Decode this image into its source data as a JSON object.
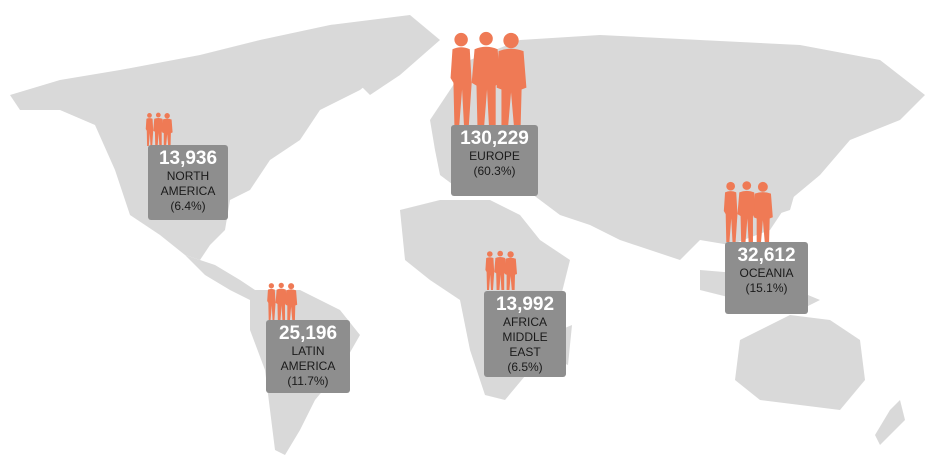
{
  "colors": {
    "map": "#d9d9d9",
    "box": "#8e8e8e",
    "people": "#ef7a55",
    "value": "#ffffff"
  },
  "regions": [
    {
      "id": "north-america",
      "value": "13,936",
      "name": "NORTH AMERICA",
      "share": "(6.4%)"
    },
    {
      "id": "europe",
      "value": "130,229",
      "name": "EUROPE",
      "share": "(60.3%)"
    },
    {
      "id": "oceania",
      "value": "32,612",
      "name": "OCEANIA",
      "share": "(15.1%)"
    },
    {
      "id": "africa-middle-east",
      "value": "13,992",
      "name": "AFRICA MIDDLE EAST",
      "share": "(6.5%)"
    },
    {
      "id": "latin-america",
      "value": "25,196",
      "name": "LATIN AMERICA",
      "share": "(11.7%)"
    }
  ]
}
